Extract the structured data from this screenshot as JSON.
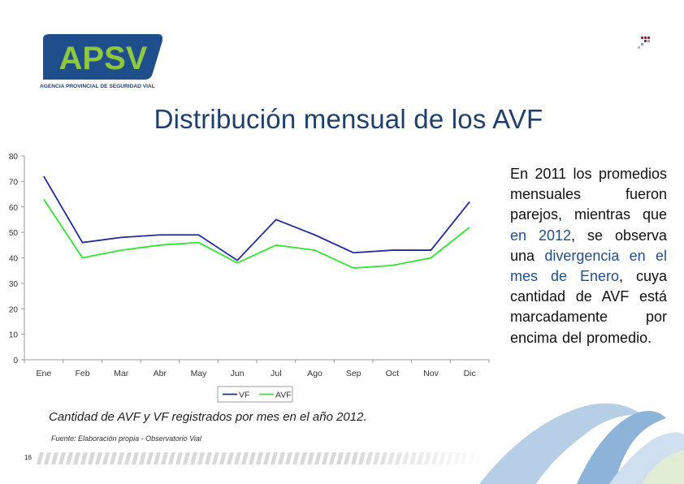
{
  "logo": {
    "text": "APSV",
    "subtitle": "AGENCIA PROVINCIAL DE SEGURIDAD VIAL"
  },
  "title": "Distribución mensual de los AVF",
  "side_text": {
    "p1": "En 2011 los promedios mensuales fueron parejos, mientras que ",
    "hl1": "en 2012",
    "p2": ", se observa una ",
    "hl2": "divergencia en el mes de Enero",
    "p3": ", cuya cantidad de AVF está marcadamente por encima del promedio."
  },
  "caption": "Cantidad de AVF y VF registrados por mes en el año 2012.",
  "source": "Fuente: Elaboración propia - Observatorio Vial",
  "page_number": "16",
  "chart_data": {
    "type": "line",
    "categories": [
      "Ene",
      "Feb",
      "Mar",
      "Abr",
      "May",
      "Jun",
      "Jul",
      "Ago",
      "Sep",
      "Oct",
      "Nov",
      "Dic"
    ],
    "series": [
      {
        "name": "VF",
        "color": "#1f2aa0",
        "values": [
          72,
          46,
          48,
          49,
          49,
          39,
          55,
          49,
          42,
          43,
          43,
          62
        ]
      },
      {
        "name": "AVF",
        "color": "#2ee62e",
        "values": [
          63,
          40,
          43,
          45,
          46,
          38,
          45,
          43,
          36,
          37,
          40,
          52
        ]
      }
    ],
    "ylim": [
      0,
      80
    ],
    "yticks": [
      "0",
      "10",
      "20",
      "30",
      "40",
      "50",
      "60",
      "70",
      "80"
    ],
    "grid": false,
    "legend": "bottom"
  }
}
